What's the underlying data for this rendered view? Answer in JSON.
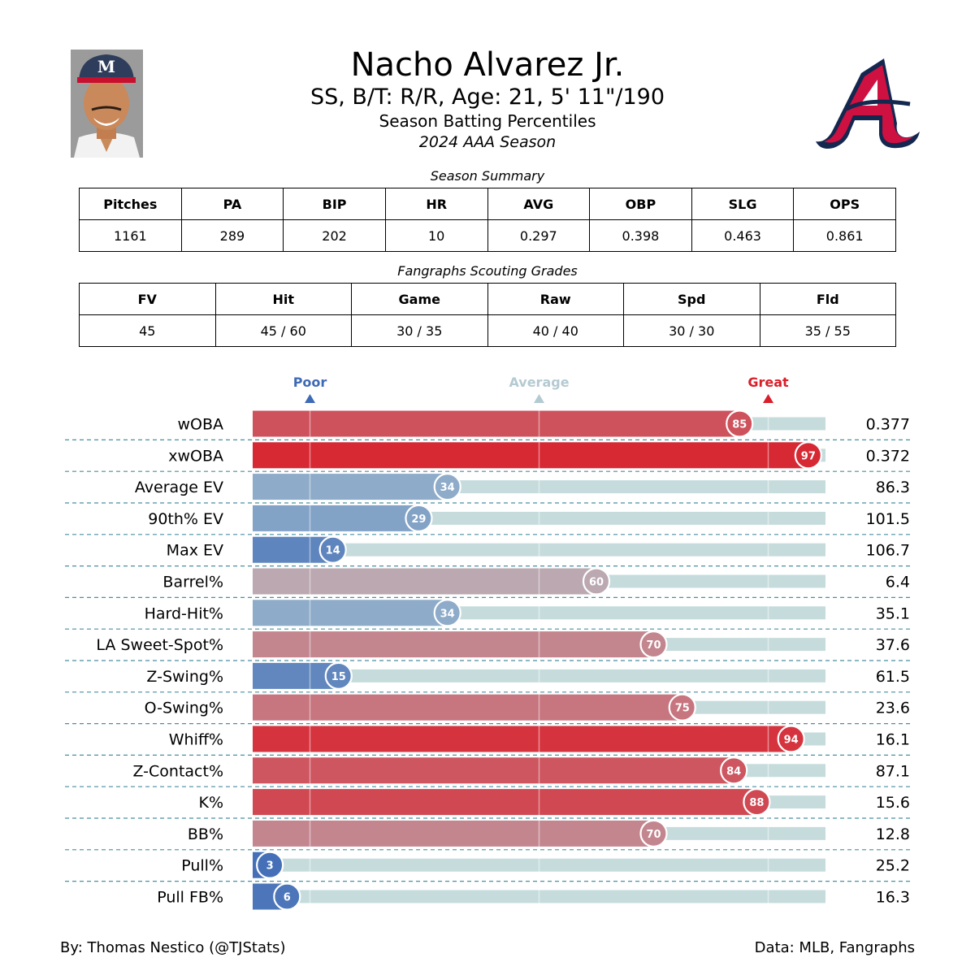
{
  "header": {
    "player_name": "Nacho Alvarez Jr.",
    "player_info": "SS, B/T: R/R, Age: 21, 5' 11\"/190",
    "subtitle": "Season Batting Percentiles",
    "season": "2024 AAA Season"
  },
  "season_summary": {
    "title": "Season Summary",
    "headers": [
      "Pitches",
      "PA",
      "BIP",
      "HR",
      "AVG",
      "OBP",
      "SLG",
      "OPS"
    ],
    "values": [
      "1161",
      "289",
      "202",
      "10",
      "0.297",
      "0.398",
      "0.463",
      "0.861"
    ]
  },
  "scouting_grades": {
    "title": "Fangraphs Scouting Grades",
    "headers": [
      "FV",
      "Hit",
      "Game",
      "Raw",
      "Spd",
      "Fld"
    ],
    "values": [
      "45",
      "45 / 60",
      "30 / 35",
      "40 / 40",
      "30 / 30",
      "35 / 55"
    ]
  },
  "colors": {
    "poor": "#3e6ab6",
    "average": "#b4cad2",
    "great": "#d91f2a",
    "track": "#c6dcdc",
    "row_divider": "#4a8fa0"
  },
  "icons": {
    "headshot": "player-headshot-icon",
    "team_logo": "atlanta-braves-logo-icon"
  },
  "logo_text": "M",
  "chart_data": {
    "type": "bar",
    "orientation": "horizontal",
    "xlim": [
      0,
      100
    ],
    "markers": [
      {
        "label": "Poor",
        "value": 10
      },
      {
        "label": "Average",
        "value": 50
      },
      {
        "label": "Great",
        "value": 90
      }
    ],
    "categories": [
      "wOBA",
      "xwOBA",
      "Average EV",
      "90th% EV",
      "Max EV",
      "Barrel%",
      "Hard-Hit%",
      "LA Sweet-Spot%",
      "Z-Swing%",
      "O-Swing%",
      "Whiff%",
      "Z-Contact%",
      "K%",
      "BB%",
      "Pull%",
      "Pull FB%"
    ],
    "series": [
      {
        "values": [
          85,
          97,
          34,
          29,
          14,
          60,
          34,
          70,
          15,
          75,
          94,
          84,
          88,
          70,
          3,
          6
        ]
      }
    ],
    "stat_values": [
      "0.377",
      "0.372",
      "86.3",
      "101.5",
      "106.7",
      "6.4",
      "35.1",
      "37.6",
      "61.5",
      "23.6",
      "16.1",
      "87.1",
      "15.6",
      "12.8",
      "25.2",
      "16.3"
    ]
  },
  "footer": {
    "credit": "By: Thomas Nestico (@TJStats)",
    "source": "Data: MLB, Fangraphs"
  }
}
